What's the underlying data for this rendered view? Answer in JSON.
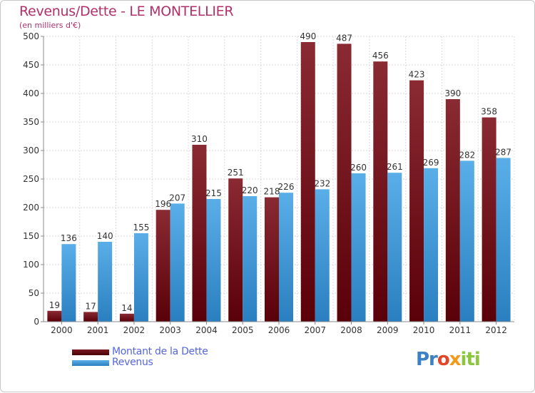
{
  "header": {
    "title": "Revenus/Dette - LE MONTELLIER",
    "subtitle": "(en milliers d'€)"
  },
  "legend": {
    "items": [
      {
        "label": "Montant de la Dette",
        "color": "#6b0d12"
      },
      {
        "label": "Revenus",
        "color": "#3b96d6"
      }
    ]
  },
  "logo": {
    "text": "Proxiti"
  },
  "chart_data": {
    "type": "bar",
    "categories": [
      "2000",
      "2001",
      "2002",
      "2003",
      "2004",
      "2005",
      "2006",
      "2007",
      "2008",
      "2009",
      "2010",
      "2011",
      "2012"
    ],
    "series": [
      {
        "name": "Montant de la Dette",
        "values": [
          19,
          17,
          14,
          196,
          310,
          251,
          218,
          490,
          487,
          456,
          423,
          390,
          358
        ],
        "color": "#6b0d12"
      },
      {
        "name": "Revenus",
        "values": [
          136,
          140,
          155,
          207,
          215,
          220,
          226,
          232,
          260,
          261,
          269,
          282,
          287
        ],
        "color": "#3b96d6"
      }
    ],
    "ylim": [
      0,
      500
    ],
    "yticks": [
      0,
      50,
      100,
      150,
      200,
      250,
      300,
      350,
      400,
      450,
      500
    ],
    "grid": true,
    "legend_position": "bottom-left"
  }
}
